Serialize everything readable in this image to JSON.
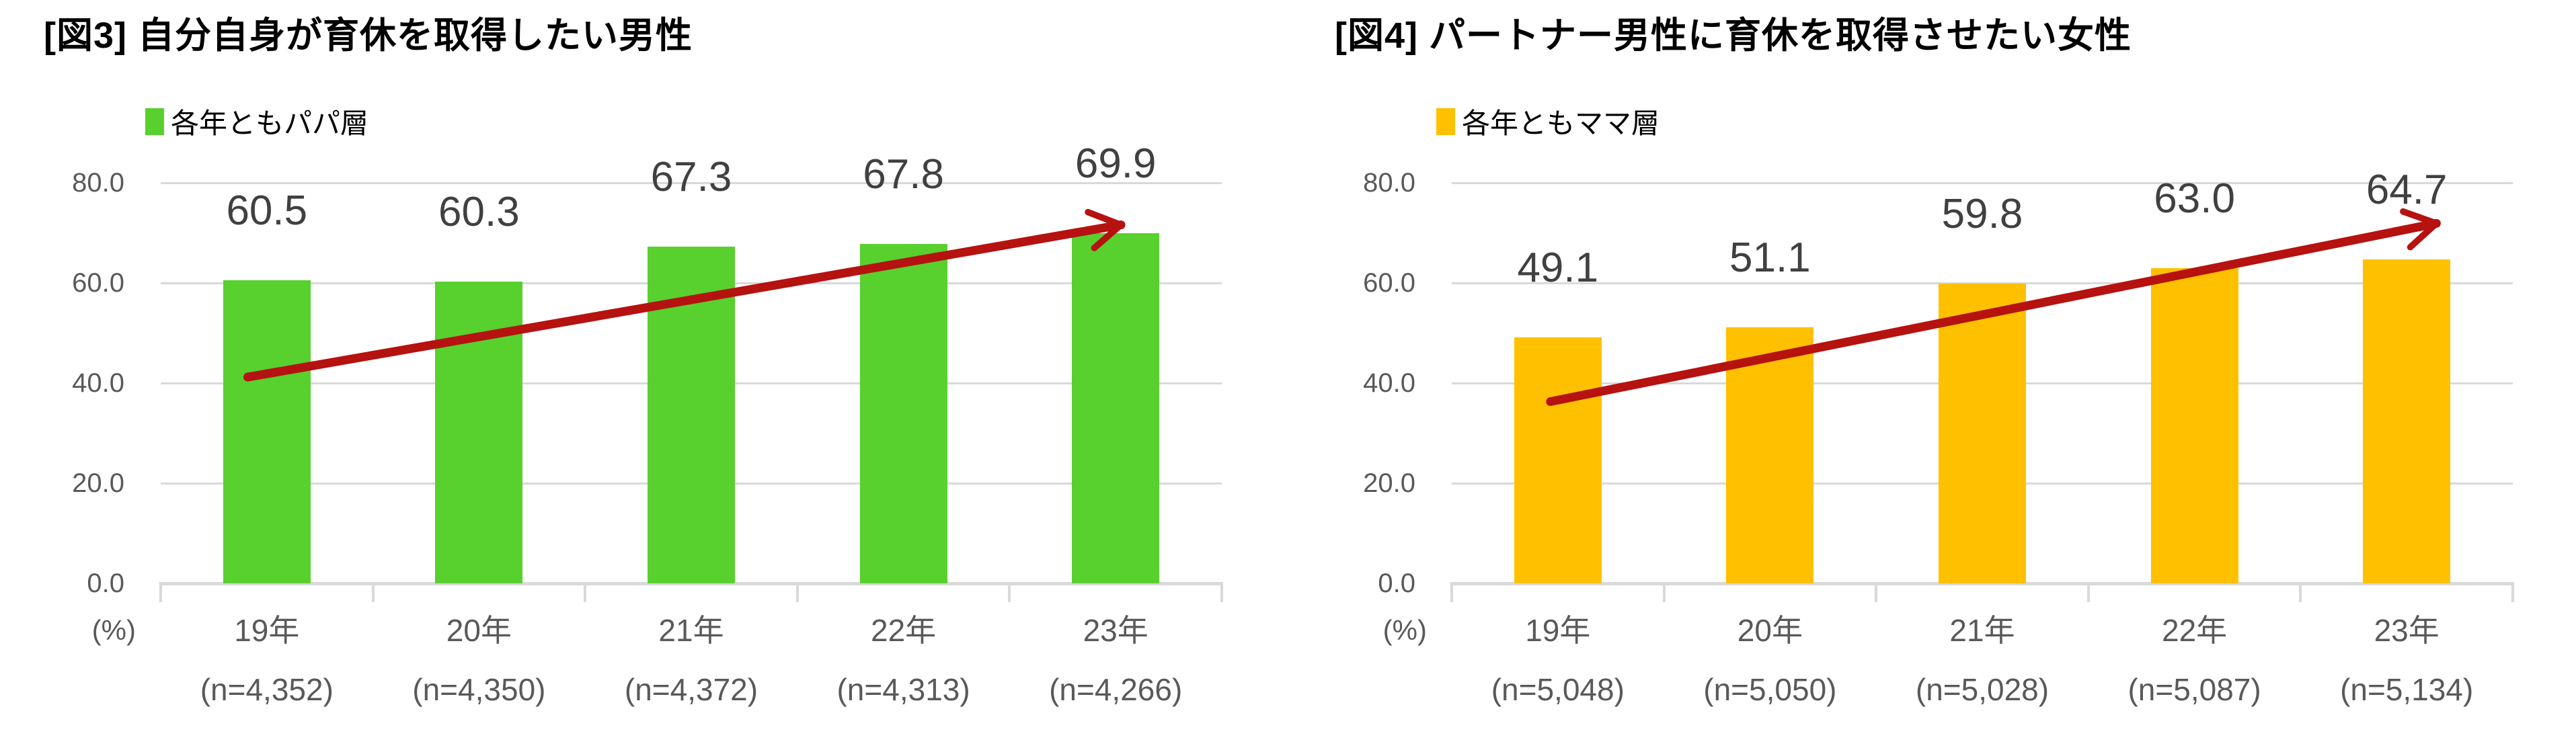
{
  "page": {
    "background": "#ffffff"
  },
  "chart_data": [
    {
      "type": "bar",
      "title": "[図3] 自分自身が育休を取得したい男性",
      "legend": [
        {
          "label": "各年ともパパ層",
          "color": "#58d02e"
        }
      ],
      "categories": [
        "19年",
        "20年",
        "21年",
        "22年",
        "23年"
      ],
      "sample_sizes": [
        "(n=4,352)",
        "(n=4,350)",
        "(n=4,372)",
        "(n=4,313)",
        "(n=4,266)"
      ],
      "values": [
        60.5,
        60.3,
        67.3,
        67.8,
        69.9
      ],
      "value_labels": [
        "60.5",
        "60.3",
        "67.3",
        "67.8",
        "69.9"
      ],
      "bar_color": "#58d02e",
      "xlabel": "",
      "ylabel_unit": "(%)",
      "ylim": [
        0,
        80
      ],
      "yticks": [
        0,
        20,
        40,
        60,
        80
      ],
      "ytick_labels": [
        "0.0",
        "20.0",
        "40.0",
        "60.0",
        "80.0"
      ],
      "grid": true,
      "legend_position": "top-left",
      "trend_arrow": {
        "color": "#b51210",
        "x1_frac": 0.082,
        "y1": 41.2,
        "x2_frac": 0.905,
        "y2": 71.6
      }
    },
    {
      "type": "bar",
      "title": "[図4] パートナー男性に育休を取得させたい女性",
      "legend": [
        {
          "label": "各年ともママ層",
          "color": "#ffc000"
        }
      ],
      "categories": [
        "19年",
        "20年",
        "21年",
        "22年",
        "23年"
      ],
      "sample_sizes": [
        "(n=5,048)",
        "(n=5,050)",
        "(n=5,028)",
        "(n=5,087)",
        "(n=5,134)"
      ],
      "values": [
        49.1,
        51.1,
        59.8,
        63.0,
        64.7
      ],
      "value_labels": [
        "49.1",
        "51.1",
        "59.8",
        "63.0",
        "64.7"
      ],
      "bar_color": "#ffc000",
      "xlabel": "",
      "ylabel_unit": "(%)",
      "ylim": [
        0,
        80
      ],
      "yticks": [
        0,
        20,
        40,
        60,
        80
      ],
      "ytick_labels": [
        "0.0",
        "20.0",
        "40.0",
        "60.0",
        "80.0"
      ],
      "grid": true,
      "legend_position": "top-left",
      "trend_arrow": {
        "color": "#b51210",
        "x1_frac": 0.093,
        "y1": 36.3,
        "x2_frac": 0.928,
        "y2": 71.9
      }
    }
  ]
}
